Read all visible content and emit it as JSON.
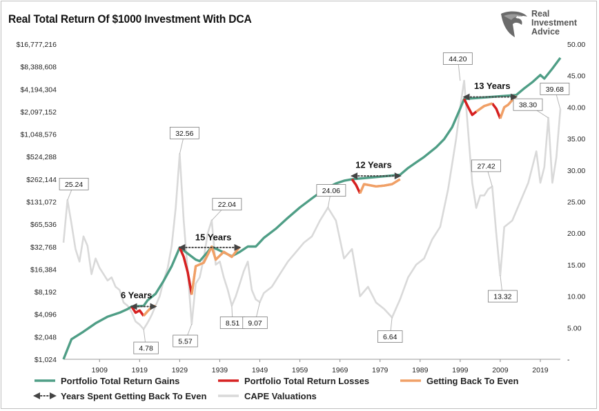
{
  "title": "Real Total Return Of $1000 Investment With DCA",
  "logo": {
    "line1": "Real",
    "line2": "Investment",
    "line3": "Advice",
    "icon": "eagle-head-icon"
  },
  "chart_data": {
    "type": "line",
    "title": "Real Total Return Of $1000 Investment With DCA",
    "x_range": [
      1900,
      2024
    ],
    "x_ticks": [
      "1909",
      "1919",
      "1929",
      "1939",
      "1949",
      "1959",
      "1969",
      "1979",
      "1989",
      "1999",
      "2009",
      "2019"
    ],
    "y_left_scale": "log2",
    "y_left_range": [
      1024,
      16777216
    ],
    "y_left_ticks": [
      "$1,024",
      "$2,048",
      "$4,096",
      "$8,192",
      "$16,384",
      "$32,768",
      "$65,536",
      "$131,072",
      "$262,144",
      "$524,288",
      "$1,048,576",
      "$2,097,152",
      "$4,194,304",
      "$8,388,608",
      "$16,777,216"
    ],
    "y_right_range": [
      0,
      50
    ],
    "y_right_ticks": [
      "-",
      "5.00",
      "10.00",
      "15.00",
      "20.00",
      "25.00",
      "30.00",
      "35.00",
      "40.00",
      "45.00",
      "50.00"
    ],
    "colors": {
      "gains": "#4f9e86",
      "losses": "#d62020",
      "recovery": "#f0a067",
      "cape": "#d9d9d9",
      "arrow": "#444444"
    },
    "series": [
      {
        "name": "Portfolio Total Return Gains",
        "role": "gains",
        "x": [
          1900,
          1902,
          1905,
          1908,
          1911,
          1914,
          1916,
          1917,
          1920,
          1921,
          1923,
          1925,
          1927,
          1929,
          1933,
          1934,
          1936,
          1937,
          1942,
          1944,
          1946,
          1948,
          1950,
          1953,
          1956,
          1959,
          1962,
          1965,
          1968,
          1970,
          1972,
          1984,
          1986,
          1988,
          1990,
          1993,
          1995,
          1997,
          1999,
          2000,
          2013,
          2015,
          2017,
          2019,
          2020,
          2022,
          2024
        ],
        "y": [
          1024,
          1900,
          2400,
          3100,
          3800,
          4300,
          4800,
          5200,
          5300,
          6300,
          7700,
          11500,
          18000,
          32000,
          22000,
          21000,
          28000,
          32768,
          24500,
          28000,
          33000,
          33000,
          43000,
          57000,
          80000,
          110000,
          145000,
          190000,
          230000,
          250000,
          262144,
          300000,
          370000,
          440000,
          520000,
          700000,
          900000,
          1300000,
          2300000,
          3100000,
          3500000,
          4300000,
          5200000,
          6500000,
          5800000,
          7900000,
          11000000
        ]
      },
      {
        "name": "Portfolio Total Return Losses",
        "role": "losses",
        "segments": [
          {
            "x": [
              1917,
              1918,
              1919,
              1920
            ],
            "y": [
              5200,
              4300,
              4600,
              3900
            ]
          },
          {
            "x": [
              1929,
              1930,
              1931,
              1932
            ],
            "y": [
              32000,
              24000,
              15000,
              7500
            ]
          },
          {
            "x": [
              1972,
              1973,
              1974
            ],
            "y": [
              262144,
              220000,
              170000
            ]
          },
          {
            "x": [
              2000,
              2001,
              2002,
              2003
            ],
            "y": [
              3100000,
              2400000,
              1900000,
              2100000
            ]
          },
          {
            "x": [
              2007,
              2008,
              2009
            ],
            "y": [
              2700000,
              2300000,
              1700000
            ]
          }
        ]
      },
      {
        "name": "Getting Back To Even",
        "role": "recovery",
        "segments": [
          {
            "x": [
              1920,
              1921,
              1922,
              1923
            ],
            "y": [
              3900,
              4500,
              5100,
              5300
            ]
          },
          {
            "x": [
              1932,
              1933,
              1935,
              1937,
              1938,
              1940,
              1942,
              1944
            ],
            "y": [
              7500,
              18000,
              20000,
              32768,
              22000,
              28000,
              24000,
              32768
            ]
          },
          {
            "x": [
              1974,
              1975,
              1978,
              1980,
              1982,
              1984
            ],
            "y": [
              170000,
              225000,
              210000,
              215000,
              225000,
              262144
            ]
          },
          {
            "x": [
              2003,
              2005,
              2007
            ],
            "y": [
              2100000,
              2500000,
              2700000
            ]
          },
          {
            "x": [
              2009,
              2010,
              2011,
              2012,
              2013
            ],
            "y": [
              1700000,
              2400000,
              2600000,
              3000000,
              3400000
            ]
          }
        ]
      },
      {
        "name": "CAPE Valuations",
        "role": "cape",
        "axis": "right",
        "x": [
          1900,
          1901,
          1902,
          1903,
          1904,
          1905,
          1906,
          1907,
          1908,
          1909,
          1910,
          1911,
          1912,
          1913,
          1914,
          1915,
          1916,
          1917,
          1918,
          1919,
          1920,
          1921,
          1922,
          1923,
          1924,
          1925,
          1926,
          1927,
          1928,
          1929,
          1930,
          1931,
          1932,
          1933,
          1934,
          1935,
          1936,
          1937,
          1938,
          1939,
          1940,
          1941,
          1942,
          1943,
          1944,
          1945,
          1946,
          1947,
          1948,
          1949,
          1950,
          1952,
          1954,
          1956,
          1958,
          1960,
          1962,
          1964,
          1966,
          1968,
          1970,
          1972,
          1974,
          1976,
          1978,
          1980,
          1982,
          1984,
          1986,
          1988,
          1990,
          1992,
          1994,
          1996,
          1998,
          1999,
          2000,
          2001,
          2002,
          2003,
          2004,
          2005,
          2006,
          2007,
          2008,
          2009,
          2010,
          2012,
          2014,
          2016,
          2018,
          2019,
          2020,
          2021,
          2022,
          2023,
          2024
        ],
        "y": [
          18.5,
          25.24,
          21.5,
          17.5,
          15.5,
          19.5,
          18,
          13.5,
          16,
          14.5,
          13.5,
          12.5,
          13,
          11.5,
          11,
          9,
          8.5,
          7.5,
          6,
          5.5,
          4.78,
          5.8,
          7,
          8.5,
          10,
          12.5,
          14.5,
          18,
          24,
          32.56,
          22,
          14,
          5.57,
          12,
          13,
          16,
          20,
          22.04,
          15,
          15.5,
          13,
          11,
          8.51,
          10,
          12,
          14,
          15.5,
          11,
          9.5,
          9.07,
          10.5,
          11.5,
          13.5,
          15.5,
          17,
          18.5,
          19.5,
          22,
          24.06,
          22,
          16,
          17.5,
          10,
          11.5,
          9,
          8,
          6.64,
          9.5,
          13,
          15,
          16,
          19,
          21,
          27,
          35,
          40,
          44.2,
          36,
          28,
          24,
          26,
          26,
          27,
          27.42,
          20,
          13.32,
          21,
          22,
          25,
          28,
          33,
          28,
          30.5,
          38.3,
          28,
          32,
          39.68
        ]
      }
    ],
    "callouts": [
      {
        "label": "25.24",
        "x": 1901,
        "y": 25.24,
        "box_x": 1902.6,
        "box_y": 27.8
      },
      {
        "label": "32.56",
        "x": 1929,
        "y": 32.56,
        "box_x": 1930.2,
        "box_y": 35.9
      },
      {
        "label": "22.04",
        "x": 1937,
        "y": 22.04,
        "box_x": 1940.8,
        "box_y": 24.6
      },
      {
        "label": "4.78",
        "x": 1920,
        "y": 4.78,
        "box_x": 1920.6,
        "box_y": 1.8
      },
      {
        "label": "5.57",
        "x": 1932,
        "y": 5.57,
        "box_x": 1930.4,
        "box_y": 2.9
      },
      {
        "label": "8.51",
        "x": 1942,
        "y": 8.51,
        "box_x": 1942.2,
        "box_y": 5.8
      },
      {
        "label": "9.07",
        "x": 1949,
        "y": 9.07,
        "box_x": 1947.8,
        "box_y": 5.8
      },
      {
        "label": "24.06",
        "x": 1966,
        "y": 24.06,
        "box_x": 1966.8,
        "box_y": 26.8
      },
      {
        "label": "6.64",
        "x": 1982,
        "y": 6.64,
        "box_x": 1981.5,
        "box_y": 3.6
      },
      {
        "label": "44.20",
        "x": 1999,
        "y": 44.2,
        "box_x": 1998.4,
        "box_y": 47.7
      },
      {
        "label": "27.42",
        "x": 2007,
        "y": 27.42,
        "box_x": 2005.5,
        "box_y": 30.7
      },
      {
        "label": "13.32",
        "x": 2009,
        "y": 13.32,
        "box_x": 2009.6,
        "box_y": 10.0
      },
      {
        "label": "38.30",
        "x": 2021,
        "y": 38.3,
        "box_x": 2015.9,
        "box_y": 40.4
      },
      {
        "label": "39.68",
        "x": 2024,
        "y": 39.68,
        "box_x": 2022.6,
        "box_y": 42.9
      }
    ],
    "periods": [
      {
        "label": "6 Years",
        "x_start": 1917,
        "x_end": 1923,
        "y": 5200,
        "label_x": 1918.2,
        "label_y": 6700
      },
      {
        "label": "15 Years",
        "x_start": 1929,
        "x_end": 1944,
        "y": 32000,
        "label_x": 1937.4,
        "label_y": 40000
      },
      {
        "label": "12 Years",
        "x_start": 1972,
        "x_end": 1984,
        "y": 290000,
        "label_x": 1977.4,
        "label_y": 370000
      },
      {
        "label": "13 Years",
        "x_start": 2000,
        "x_end": 2013,
        "y": 3300000,
        "label_x": 2007,
        "label_y": 4200000
      }
    ],
    "legend": {
      "placement": "bottom",
      "items": [
        {
          "label": "Portfolio Total Return Gains",
          "role": "gains"
        },
        {
          "label": "Portfolio Total Return Losses",
          "role": "losses"
        },
        {
          "label": "Getting Back To Even",
          "role": "recovery"
        },
        {
          "label": "Years Spent Getting Back To Even",
          "role": "arrow"
        },
        {
          "label": "CAPE Valuations",
          "role": "cape"
        }
      ]
    }
  }
}
